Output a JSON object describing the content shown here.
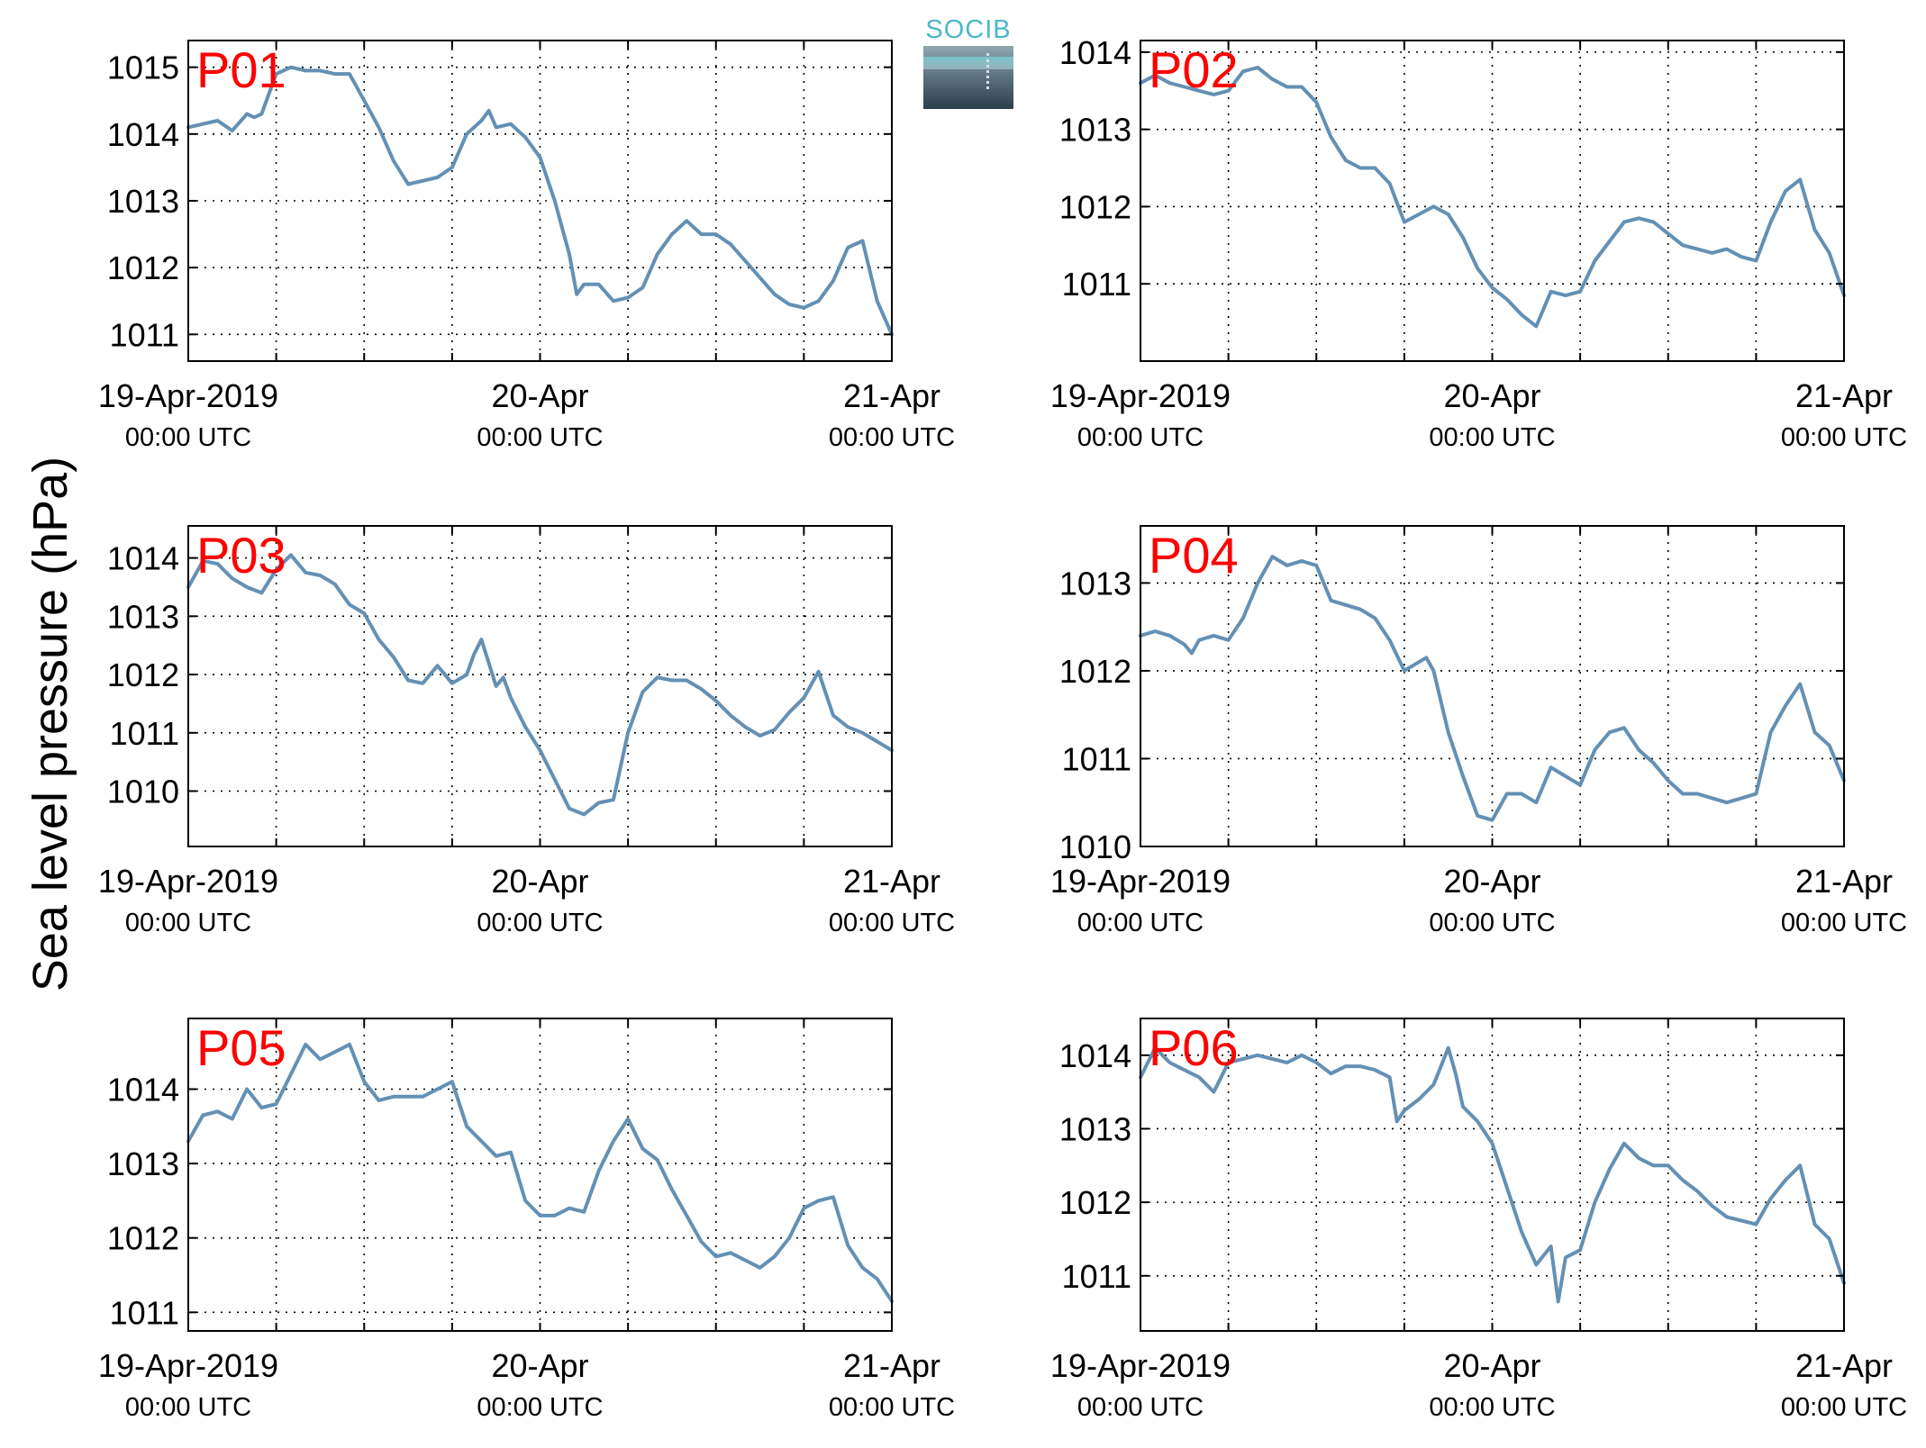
{
  "figure": {
    "ylabel": "Sea level pressure (hPa)",
    "logo_text": "SOCIB",
    "line_color": "#6490b4",
    "station_label_color": "#ff0000"
  },
  "chart_data": [
    {
      "type": "line",
      "station": "P01",
      "ylim": [
        1010.6,
        1015.4
      ],
      "yticks": [
        1011,
        1012,
        1013,
        1014,
        1015
      ],
      "xlim": [
        0,
        48
      ],
      "xticks": [
        {
          "x": 0,
          "top": "19-Apr-2019",
          "bottom": "00:00 UTC"
        },
        {
          "x": 24,
          "top": "20-Apr",
          "bottom": "00:00 UTC"
        },
        {
          "x": 48,
          "top": "21-Apr",
          "bottom": "00:00 UTC"
        }
      ],
      "x_gridlines": [
        6,
        12,
        18,
        24,
        30,
        36,
        42
      ],
      "grid": true,
      "series": [
        {
          "x": [
            0,
            1,
            2,
            3,
            4,
            4.5,
            5,
            6,
            7,
            8,
            9,
            10,
            11,
            12,
            13,
            14,
            15,
            16,
            17,
            18,
            19,
            20,
            20.5,
            21,
            22,
            23,
            24,
            25,
            26,
            26.5,
            27,
            28,
            29,
            30,
            31,
            32,
            33,
            34,
            35,
            36,
            37,
            38,
            39,
            40,
            41,
            42,
            43,
            44,
            45,
            46,
            47,
            48
          ],
          "y": [
            1014.1,
            1014.15,
            1014.2,
            1014.05,
            1014.3,
            1014.25,
            1014.3,
            1014.9,
            1015.0,
            1014.95,
            1014.95,
            1014.9,
            1014.9,
            1014.5,
            1014.1,
            1013.6,
            1013.25,
            1013.3,
            1013.35,
            1013.5,
            1014.0,
            1014.2,
            1014.35,
            1014.1,
            1014.15,
            1013.95,
            1013.65,
            1013.0,
            1012.2,
            1011.6,
            1011.75,
            1011.75,
            1011.5,
            1011.55,
            1011.7,
            1012.2,
            1012.5,
            1012.7,
            1012.5,
            1012.5,
            1012.35,
            1012.1,
            1011.85,
            1011.6,
            1011.45,
            1011.4,
            1011.5,
            1011.8,
            1012.3,
            1012.4,
            1011.5,
            1011.0
          ]
        }
      ]
    },
    {
      "type": "line",
      "station": "P02",
      "ylim": [
        1010.0,
        1014.15
      ],
      "yticks": [
        1011,
        1012,
        1013,
        1014
      ],
      "xlim": [
        0,
        48
      ],
      "xticks": [
        {
          "x": 0,
          "top": "19-Apr-2019",
          "bottom": "00:00 UTC"
        },
        {
          "x": 24,
          "top": "20-Apr",
          "bottom": "00:00 UTC"
        },
        {
          "x": 48,
          "top": "21-Apr",
          "bottom": "00:00 UTC"
        }
      ],
      "x_gridlines": [
        6,
        12,
        18,
        24,
        30,
        36,
        42
      ],
      "grid": true,
      "series": [
        {
          "x": [
            0,
            1,
            2,
            3,
            4,
            5,
            6,
            7,
            8,
            9,
            10,
            11,
            12,
            13,
            14,
            15,
            16,
            17,
            18,
            19,
            20,
            21,
            22,
            23,
            24,
            25,
            26,
            27,
            28,
            29,
            30,
            31,
            32,
            33,
            34,
            35,
            36,
            37,
            38,
            39,
            40,
            41,
            42,
            43,
            44,
            45,
            46,
            47,
            48
          ],
          "y": [
            1013.6,
            1013.7,
            1013.6,
            1013.55,
            1013.5,
            1013.45,
            1013.5,
            1013.75,
            1013.8,
            1013.65,
            1013.55,
            1013.55,
            1013.35,
            1012.9,
            1012.6,
            1012.5,
            1012.5,
            1012.3,
            1011.8,
            1011.9,
            1012.0,
            1011.9,
            1011.6,
            1011.2,
            1010.95,
            1010.8,
            1010.6,
            1010.45,
            1010.9,
            1010.85,
            1010.9,
            1011.3,
            1011.55,
            1011.8,
            1011.85,
            1011.8,
            1011.65,
            1011.5,
            1011.45,
            1011.4,
            1011.45,
            1011.35,
            1011.3,
            1011.8,
            1012.2,
            1012.35,
            1011.7,
            1011.4,
            1010.85
          ]
        }
      ]
    },
    {
      "type": "line",
      "station": "P03",
      "ylim": [
        1009.05,
        1014.55
      ],
      "yticks": [
        1010,
        1011,
        1012,
        1013,
        1014
      ],
      "xlim": [
        0,
        48
      ],
      "xticks": [
        {
          "x": 0,
          "top": "19-Apr-2019",
          "bottom": "00:00 UTC"
        },
        {
          "x": 24,
          "top": "20-Apr",
          "bottom": "00:00 UTC"
        },
        {
          "x": 48,
          "top": "21-Apr",
          "bottom": "00:00 UTC"
        }
      ],
      "x_gridlines": [
        6,
        12,
        18,
        24,
        30,
        36,
        42
      ],
      "grid": true,
      "series": [
        {
          "x": [
            0,
            1,
            2,
            3,
            4,
            5,
            6,
            7,
            8,
            9,
            10,
            11,
            12,
            13,
            14,
            15,
            16,
            17,
            18,
            19,
            19.5,
            20,
            21,
            21.5,
            22,
            23,
            24,
            25,
            26,
            27,
            28,
            29,
            30,
            31,
            32,
            33,
            34,
            35,
            36,
            37,
            38,
            39,
            40,
            41,
            42,
            43,
            44,
            45,
            46,
            47,
            48
          ],
          "y": [
            1013.5,
            1013.95,
            1013.9,
            1013.65,
            1013.5,
            1013.4,
            1013.8,
            1014.05,
            1013.75,
            1013.7,
            1013.55,
            1013.2,
            1013.05,
            1012.6,
            1012.3,
            1011.9,
            1011.85,
            1012.15,
            1011.85,
            1012.0,
            1012.35,
            1012.6,
            1011.8,
            1011.95,
            1011.6,
            1011.1,
            1010.7,
            1010.2,
            1009.7,
            1009.6,
            1009.8,
            1009.85,
            1011.0,
            1011.7,
            1011.95,
            1011.9,
            1011.9,
            1011.75,
            1011.55,
            1011.3,
            1011.1,
            1010.95,
            1011.05,
            1011.35,
            1011.6,
            1012.05,
            1011.3,
            1011.1,
            1011.0,
            1010.85,
            1010.7
          ]
        }
      ]
    },
    {
      "type": "line",
      "station": "P04",
      "ylim": [
        1010.0,
        1013.65
      ],
      "yticks": [
        1010,
        1011,
        1012,
        1013
      ],
      "xlim": [
        0,
        48
      ],
      "xticks": [
        {
          "x": 0,
          "top": "19-Apr-2019",
          "bottom": "00:00 UTC"
        },
        {
          "x": 24,
          "top": "20-Apr",
          "bottom": "00:00 UTC"
        },
        {
          "x": 48,
          "top": "21-Apr",
          "bottom": "00:00 UTC"
        }
      ],
      "x_gridlines": [
        6,
        12,
        18,
        24,
        30,
        36,
        42
      ],
      "grid": true,
      "series": [
        {
          "x": [
            0,
            1,
            2,
            3,
            3.5,
            4,
            5,
            6,
            7,
            8,
            9,
            10,
            11,
            12,
            13,
            14,
            15,
            16,
            17,
            18,
            19,
            19.5,
            20,
            21,
            22,
            23,
            24,
            25,
            26,
            27,
            28,
            29,
            30,
            31,
            32,
            33,
            34,
            35,
            36,
            37,
            38,
            39,
            40,
            41,
            42,
            43,
            44,
            45,
            46,
            47,
            48
          ],
          "y": [
            1012.4,
            1012.45,
            1012.4,
            1012.3,
            1012.2,
            1012.35,
            1012.4,
            1012.35,
            1012.6,
            1013.0,
            1013.3,
            1013.2,
            1013.25,
            1013.2,
            1012.8,
            1012.75,
            1012.7,
            1012.6,
            1012.35,
            1012.0,
            1012.1,
            1012.15,
            1012.0,
            1011.3,
            1010.8,
            1010.35,
            1010.3,
            1010.6,
            1010.6,
            1010.5,
            1010.9,
            1010.8,
            1010.7,
            1011.1,
            1011.3,
            1011.35,
            1011.1,
            1010.95,
            1010.75,
            1010.6,
            1010.6,
            1010.55,
            1010.5,
            1010.55,
            1010.6,
            1011.3,
            1011.6,
            1011.85,
            1011.3,
            1011.15,
            1010.75
          ]
        }
      ]
    },
    {
      "type": "line",
      "station": "P05",
      "ylim": [
        1010.75,
        1014.95
      ],
      "yticks": [
        1011,
        1012,
        1013,
        1014
      ],
      "xlim": [
        0,
        48
      ],
      "xticks": [
        {
          "x": 0,
          "top": "19-Apr-2019",
          "bottom": "00:00 UTC"
        },
        {
          "x": 24,
          "top": "20-Apr",
          "bottom": "00:00 UTC"
        },
        {
          "x": 48,
          "top": "21-Apr",
          "bottom": "00:00 UTC"
        }
      ],
      "x_gridlines": [
        6,
        12,
        18,
        24,
        30,
        36,
        42
      ],
      "grid": true,
      "series": [
        {
          "x": [
            0,
            1,
            2,
            3,
            4,
            5,
            6,
            7,
            8,
            9,
            10,
            11,
            12,
            13,
            14,
            15,
            16,
            17,
            18,
            19,
            20,
            21,
            22,
            23,
            24,
            25,
            26,
            27,
            28,
            29,
            30,
            31,
            32,
            33,
            34,
            35,
            36,
            37,
            38,
            39,
            40,
            41,
            42,
            43,
            44,
            45,
            46,
            47,
            48
          ],
          "y": [
            1013.3,
            1013.65,
            1013.7,
            1013.6,
            1014.0,
            1013.75,
            1013.8,
            1014.2,
            1014.6,
            1014.4,
            1014.5,
            1014.6,
            1014.1,
            1013.85,
            1013.9,
            1013.9,
            1013.9,
            1014.0,
            1014.1,
            1013.5,
            1013.3,
            1013.1,
            1013.15,
            1012.5,
            1012.3,
            1012.3,
            1012.4,
            1012.35,
            1012.9,
            1013.3,
            1013.6,
            1013.2,
            1013.05,
            1012.65,
            1012.3,
            1011.95,
            1011.75,
            1011.8,
            1011.7,
            1011.6,
            1011.75,
            1012.0,
            1012.4,
            1012.5,
            1012.55,
            1011.9,
            1011.6,
            1011.45,
            1011.15
          ]
        }
      ]
    },
    {
      "type": "line",
      "station": "P06",
      "ylim": [
        1010.25,
        1014.5
      ],
      "yticks": [
        1011,
        1012,
        1013,
        1014
      ],
      "xlim": [
        0,
        48
      ],
      "xticks": [
        {
          "x": 0,
          "top": "19-Apr-2019",
          "bottom": "00:00 UTC"
        },
        {
          "x": 24,
          "top": "20-Apr",
          "bottom": "00:00 UTC"
        },
        {
          "x": 48,
          "top": "21-Apr",
          "bottom": "00:00 UTC"
        }
      ],
      "x_gridlines": [
        6,
        12,
        18,
        24,
        30,
        36,
        42
      ],
      "grid": true,
      "series": [
        {
          "x": [
            0,
            1,
            2,
            3,
            4,
            5,
            6,
            7,
            8,
            9,
            10,
            11,
            12,
            13,
            14,
            15,
            16,
            17,
            17.5,
            18,
            19,
            20,
            21,
            21.5,
            22,
            23,
            24,
            25,
            26,
            27,
            28,
            28.5,
            29,
            30,
            31,
            32,
            33,
            34,
            35,
            36,
            37,
            38,
            39,
            40,
            41,
            42,
            43,
            44,
            45,
            46,
            47,
            48
          ],
          "y": [
            1013.7,
            1014.1,
            1013.9,
            1013.8,
            1013.7,
            1013.5,
            1013.9,
            1013.95,
            1014.0,
            1013.95,
            1013.9,
            1014.0,
            1013.9,
            1013.75,
            1013.85,
            1013.85,
            1013.8,
            1013.7,
            1013.1,
            1013.25,
            1013.4,
            1013.6,
            1014.1,
            1013.75,
            1013.3,
            1013.1,
            1012.8,
            1012.2,
            1011.6,
            1011.15,
            1011.4,
            1010.65,
            1011.25,
            1011.35,
            1012.0,
            1012.45,
            1012.8,
            1012.6,
            1012.5,
            1012.5,
            1012.3,
            1012.15,
            1011.95,
            1011.8,
            1011.75,
            1011.7,
            1012.05,
            1012.3,
            1012.5,
            1011.7,
            1011.5,
            1010.9
          ]
        }
      ]
    }
  ]
}
